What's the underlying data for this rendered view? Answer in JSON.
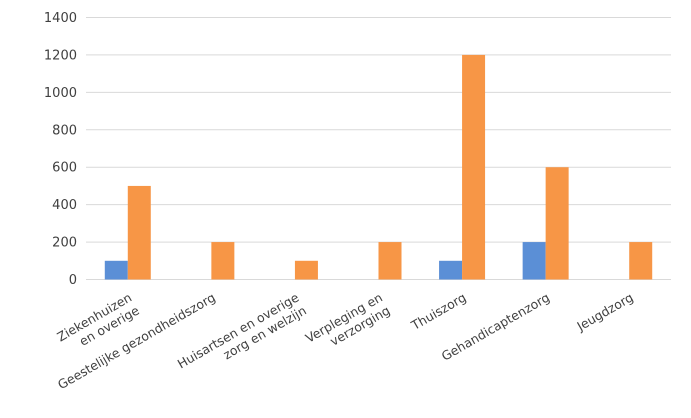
{
  "chart_data": {
    "type": "bar",
    "title": "",
    "xlabel": "",
    "ylabel": "",
    "ylim": [
      0,
      1400
    ],
    "yticks": [
      0,
      200,
      400,
      600,
      800,
      1000,
      1200,
      1400
    ],
    "grid": true,
    "legend": "none",
    "categories": [
      [
        "Ziekenhuizen",
        "en overige"
      ],
      [
        "Geestelijke gezondheidszorg"
      ],
      [
        "Huisartsen en overige",
        "zorg en welzijn"
      ],
      [
        "Verpleging en",
        "verzorging"
      ],
      [
        "Thuiszorg"
      ],
      [
        "Gehandicaptenzorg"
      ],
      [
        "Jeugdzorg"
      ]
    ],
    "series": [
      {
        "color": "#5b8fd6",
        "values": [
          100,
          0,
          0,
          0,
          100,
          200,
          0
        ]
      },
      {
        "color": "#f79646",
        "values": [
          500,
          200,
          100,
          200,
          1200,
          600,
          200
        ]
      }
    ]
  }
}
